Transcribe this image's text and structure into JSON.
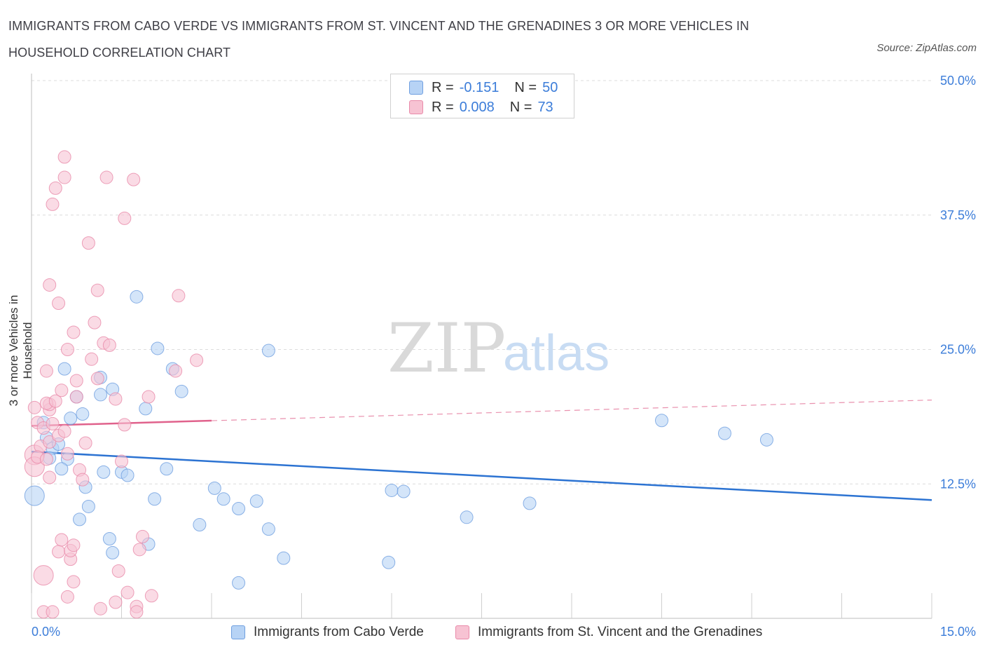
{
  "header": {
    "title": "IMMIGRANTS FROM CABO VERDE VS IMMIGRANTS FROM ST. VINCENT AND THE GRENADINES 3 OR MORE VEHICLES IN HOUSEHOLD CORRELATION CHART",
    "source": "Source: ZipAtlas.com"
  },
  "watermark": {
    "zip": "ZIP",
    "atlas": "atlas"
  },
  "legend": {
    "r_label": "R =",
    "n_label": "N =",
    "series": [
      {
        "r": "-0.151",
        "n": "50"
      },
      {
        "r": "0.008",
        "n": "73"
      }
    ]
  },
  "colors": {
    "blue_fill": "#b7d3f5",
    "blue_stroke": "#6f9fe0",
    "blue_line": "#2c73d2",
    "pink_fill": "#f7c3d3",
    "pink_stroke": "#e98aa9",
    "pink_line": "#e0628c",
    "axis_label": "#3c7dd9"
  },
  "chart_data": {
    "type": "scatter",
    "title": "IMMIGRANTS FROM CABO VERDE VS IMMIGRANTS FROM ST. VINCENT AND THE GRENADINES 3 OR MORE VEHICLES IN HOUSEHOLD CORRELATION CHART",
    "xlabel": "",
    "ylabel": "3 or more Vehicles in Household",
    "xlim": [
      0,
      15
    ],
    "ylim": [
      0,
      50
    ],
    "x_tick_labels": [
      "0.0%",
      "15.0%"
    ],
    "y_tick_values": [
      12.5,
      25,
      37.5,
      50
    ],
    "y_tick_labels": [
      "12.5%",
      "25.0%",
      "37.5%",
      "50.0%"
    ],
    "legend_position": "top-center",
    "series": [
      {
        "name": "Immigrants from Cabo Verde",
        "color": "#b7d3f5",
        "trend": {
          "x": [
            0,
            15
          ],
          "y": [
            15.5,
            11.0
          ],
          "solid_to": 15
        },
        "points": [
          {
            "x": 0.05,
            "y": 11.4,
            "big": true
          },
          {
            "x": 0.2,
            "y": 18.2
          },
          {
            "x": 0.25,
            "y": 16.8
          },
          {
            "x": 0.35,
            "y": 15.8
          },
          {
            "x": 0.3,
            "y": 14.9
          },
          {
            "x": 0.45,
            "y": 16.2
          },
          {
            "x": 0.55,
            "y": 23.2
          },
          {
            "x": 0.65,
            "y": 18.6
          },
          {
            "x": 0.75,
            "y": 20.6
          },
          {
            "x": 0.6,
            "y": 14.8
          },
          {
            "x": 0.5,
            "y": 13.9
          },
          {
            "x": 0.85,
            "y": 19.0
          },
          {
            "x": 0.9,
            "y": 12.2
          },
          {
            "x": 0.95,
            "y": 10.4
          },
          {
            "x": 0.8,
            "y": 9.2
          },
          {
            "x": 1.2,
            "y": 13.6
          },
          {
            "x": 1.15,
            "y": 22.4
          },
          {
            "x": 1.35,
            "y": 21.3
          },
          {
            "x": 1.15,
            "y": 20.8
          },
          {
            "x": 1.5,
            "y": 13.6
          },
          {
            "x": 1.6,
            "y": 13.3
          },
          {
            "x": 1.3,
            "y": 7.4
          },
          {
            "x": 1.35,
            "y": 6.1
          },
          {
            "x": 1.9,
            "y": 19.5
          },
          {
            "x": 1.95,
            "y": 6.9
          },
          {
            "x": 2.05,
            "y": 11.1
          },
          {
            "x": 2.1,
            "y": 25.1
          },
          {
            "x": 2.25,
            "y": 13.9
          },
          {
            "x": 2.35,
            "y": 23.2
          },
          {
            "x": 2.5,
            "y": 21.1
          },
          {
            "x": 1.75,
            "y": 29.9
          },
          {
            "x": 2.8,
            "y": 8.7
          },
          {
            "x": 3.05,
            "y": 12.1
          },
          {
            "x": 3.2,
            "y": 11.1
          },
          {
            "x": 3.45,
            "y": 10.2
          },
          {
            "x": 3.45,
            "y": 3.3
          },
          {
            "x": 3.75,
            "y": 10.9
          },
          {
            "x": 3.95,
            "y": 8.3
          },
          {
            "x": 3.95,
            "y": 24.9
          },
          {
            "x": 4.2,
            "y": 5.6
          },
          {
            "x": 6.0,
            "y": 11.9
          },
          {
            "x": 6.2,
            "y": 11.8
          },
          {
            "x": 5.95,
            "y": 5.2
          },
          {
            "x": 7.25,
            "y": 9.4
          },
          {
            "x": 8.3,
            "y": 10.7
          },
          {
            "x": 10.5,
            "y": 18.4
          },
          {
            "x": 11.55,
            "y": 17.2
          },
          {
            "x": 12.25,
            "y": 16.6
          }
        ]
      },
      {
        "name": "Immigrants from St. Vincent and the Grenadines",
        "color": "#f7c3d3",
        "trend": {
          "x": [
            0,
            15
          ],
          "y": [
            17.9,
            20.3
          ],
          "solid_to": 3.0
        },
        "points": [
          {
            "x": 0.05,
            "y": 15.2,
            "big": true
          },
          {
            "x": 0.05,
            "y": 14.1,
            "big": true
          },
          {
            "x": 0.05,
            "y": 19.6
          },
          {
            "x": 0.1,
            "y": 18.2
          },
          {
            "x": 0.15,
            "y": 16.0
          },
          {
            "x": 0.1,
            "y": 15.0
          },
          {
            "x": 0.2,
            "y": 17.7
          },
          {
            "x": 0.25,
            "y": 14.8
          },
          {
            "x": 0.3,
            "y": 13.1
          },
          {
            "x": 0.3,
            "y": 19.4
          },
          {
            "x": 0.3,
            "y": 19.9
          },
          {
            "x": 0.25,
            "y": 20.0
          },
          {
            "x": 0.35,
            "y": 18.1
          },
          {
            "x": 0.3,
            "y": 16.4
          },
          {
            "x": 0.4,
            "y": 20.2
          },
          {
            "x": 0.45,
            "y": 17.0
          },
          {
            "x": 0.2,
            "y": 4.0,
            "big": true
          },
          {
            "x": 0.25,
            "y": 23.0
          },
          {
            "x": 0.3,
            "y": 31.0
          },
          {
            "x": 0.35,
            "y": 38.5
          },
          {
            "x": 0.4,
            "y": 40.0
          },
          {
            "x": 0.45,
            "y": 29.3
          },
          {
            "x": 0.45,
            "y": 6.2
          },
          {
            "x": 0.5,
            "y": 21.2
          },
          {
            "x": 0.5,
            "y": 7.3
          },
          {
            "x": 0.55,
            "y": 41.0
          },
          {
            "x": 0.55,
            "y": 42.9
          },
          {
            "x": 0.55,
            "y": 17.4
          },
          {
            "x": 0.6,
            "y": 15.3
          },
          {
            "x": 0.6,
            "y": 25.0
          },
          {
            "x": 0.65,
            "y": 5.5
          },
          {
            "x": 0.65,
            "y": 6.3
          },
          {
            "x": 0.7,
            "y": 3.4
          },
          {
            "x": 0.7,
            "y": 6.8
          },
          {
            "x": 0.7,
            "y": 26.6
          },
          {
            "x": 0.75,
            "y": 22.1
          },
          {
            "x": 0.75,
            "y": 20.6
          },
          {
            "x": 0.8,
            "y": 13.8
          },
          {
            "x": 0.85,
            "y": 12.9
          },
          {
            "x": 0.9,
            "y": 16.3
          },
          {
            "x": 0.95,
            "y": 34.9
          },
          {
            "x": 1.0,
            "y": 24.1
          },
          {
            "x": 1.05,
            "y": 27.5
          },
          {
            "x": 1.1,
            "y": 30.5
          },
          {
            "x": 1.1,
            "y": 22.3
          },
          {
            "x": 1.15,
            "y": 0.9
          },
          {
            "x": 1.2,
            "y": 25.6
          },
          {
            "x": 1.25,
            "y": 41.0
          },
          {
            "x": 1.3,
            "y": 25.4
          },
          {
            "x": 1.4,
            "y": 20.4
          },
          {
            "x": 1.4,
            "y": 1.5
          },
          {
            "x": 1.45,
            "y": 4.4
          },
          {
            "x": 1.5,
            "y": 14.6
          },
          {
            "x": 1.55,
            "y": 18.0
          },
          {
            "x": 1.6,
            "y": 2.4
          },
          {
            "x": 1.55,
            "y": 37.2
          },
          {
            "x": 1.7,
            "y": 40.8
          },
          {
            "x": 1.75,
            "y": 1.1
          },
          {
            "x": 1.75,
            "y": 0.6
          },
          {
            "x": 1.8,
            "y": 6.4
          },
          {
            "x": 1.85,
            "y": 7.6
          },
          {
            "x": 1.95,
            "y": 20.6
          },
          {
            "x": 2.0,
            "y": 2.1
          },
          {
            "x": 2.4,
            "y": 23.0
          },
          {
            "x": 2.45,
            "y": 30.0
          },
          {
            "x": 2.75,
            "y": 24.0
          },
          {
            "x": 0.2,
            "y": 0.6
          },
          {
            "x": 0.6,
            "y": 2.0
          },
          {
            "x": 0.35,
            "y": 0.6
          }
        ]
      }
    ]
  }
}
